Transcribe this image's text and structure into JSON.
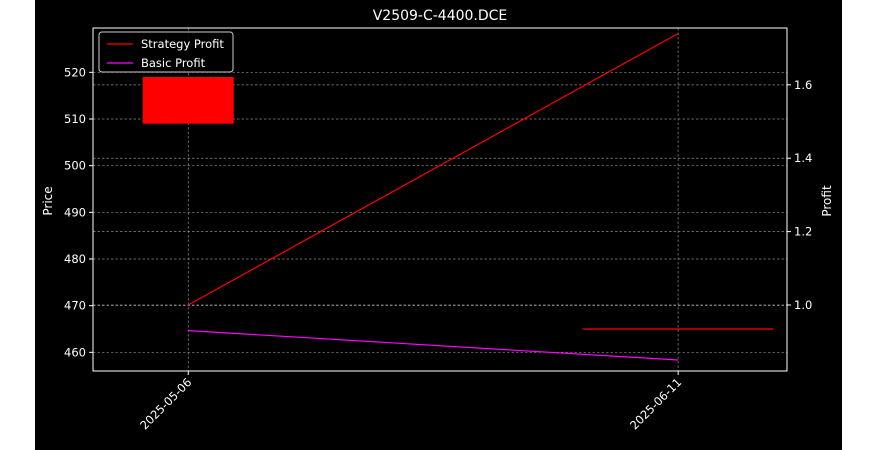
{
  "chart_data": {
    "type": "line",
    "title": "V2509-C-4400.DCE",
    "x_ticks": [
      "2025-05-06",
      "2025-06-11"
    ],
    "left_axis": {
      "label": "Price",
      "ticks": [
        460,
        470,
        480,
        490,
        500,
        510,
        520
      ],
      "ylim": [
        456,
        529.5
      ]
    },
    "right_axis": {
      "label": "Profit",
      "ticks": [
        1.0,
        1.2,
        1.4,
        1.6
      ],
      "ylim": [
        0.82,
        1.755
      ]
    },
    "xlim": [
      "2025-04-29",
      "2025-06-19"
    ],
    "grid": true,
    "legend_position": "top-left",
    "candles": [
      {
        "date": "2025-05-06",
        "open": 519.0,
        "close": 509.0,
        "color": "#ff0000"
      }
    ],
    "series": [
      {
        "name": "Strategy Profit",
        "axis": "right",
        "color": "#ff0000",
        "points": [
          {
            "x": "2025-05-06",
            "y": 1.0
          },
          {
            "x": "2025-06-11",
            "y": 1.74
          }
        ]
      },
      {
        "name": "Basic Profit",
        "axis": "right",
        "color": "#ff00ff",
        "points": [
          {
            "x": "2025-05-06",
            "y": 0.93
          },
          {
            "x": "2025-06-11",
            "y": 0.85
          }
        ]
      }
    ],
    "reference_lines": [
      {
        "axis": "left",
        "y": 465.0,
        "x_start": "2025-06-04",
        "x_end": "2025-06-18",
        "color": "#ff0000"
      }
    ]
  }
}
